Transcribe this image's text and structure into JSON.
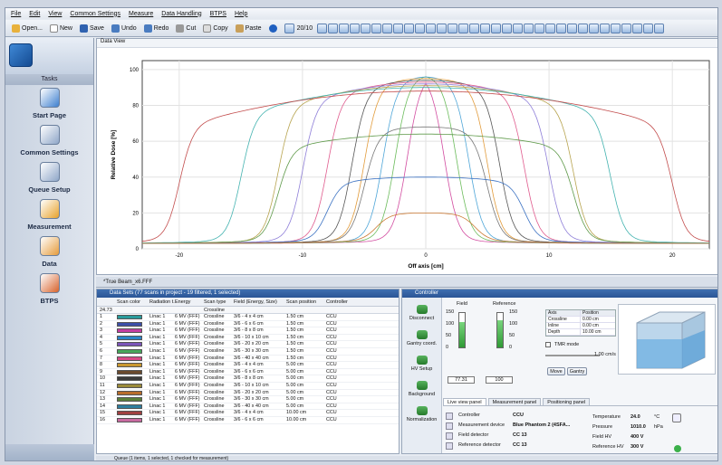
{
  "menu": [
    "File",
    "Edit",
    "View",
    "Common Settings",
    "Measure",
    "Data Handling",
    "BTPS",
    "Help"
  ],
  "toolbar": {
    "open": "Open...",
    "new": "New",
    "save": "Save",
    "undo": "Undo",
    "redo": "Redo",
    "cut": "Cut",
    "copy": "Copy",
    "paste": "Paste",
    "zoom": "20/10"
  },
  "sidebar": {
    "header": "Tasks",
    "items": [
      {
        "label": "Start Page",
        "icon": "start-page-icon",
        "color": "#3d7fcf"
      },
      {
        "label": "Common Settings",
        "icon": "common-settings-icon",
        "color": "#8ea6c8"
      },
      {
        "label": "Queue Setup",
        "icon": "queue-setup-icon",
        "color": "#8ea6c8"
      },
      {
        "label": "Measurement",
        "icon": "measurement-icon",
        "color": "#e8a22a"
      },
      {
        "label": "Data",
        "icon": "data-icon",
        "color": "#e59b3a"
      },
      {
        "label": "BTPS",
        "icon": "btps-icon",
        "color": "#d8622a"
      }
    ]
  },
  "chart_panel": {
    "title": "Data View"
  },
  "chart_data": {
    "type": "line",
    "xlabel": "Off axis [cm]",
    "ylabel": "Relative Dose [%]",
    "xlim": [
      -23,
      23
    ],
    "ylim": [
      0,
      105
    ],
    "xticks": [
      -20,
      -10,
      0,
      10,
      20
    ],
    "yticks": [
      0,
      20,
      40,
      60,
      80,
      100
    ],
    "grid": true,
    "profiles": [
      {
        "half_width": 1.5,
        "top": 98,
        "color": "#d24ca0"
      },
      {
        "half_width": 2.5,
        "top": 97,
        "color": "#6cbc5c"
      },
      {
        "half_width": 3.5,
        "top": 96,
        "color": "#4fa6d8"
      },
      {
        "half_width": 5,
        "top": 95,
        "color": "#e29c3c"
      },
      {
        "half_width": 6,
        "top": 94,
        "color": "#555555"
      },
      {
        "half_width": 8,
        "top": 93,
        "color": "#e05d8f"
      },
      {
        "half_width": 10,
        "top": 92,
        "color": "#8e7ed8"
      },
      {
        "half_width": 12,
        "top": 91,
        "color": "#b7a34e"
      },
      {
        "half_width": 15,
        "top": 90,
        "color": "#44b3b0"
      },
      {
        "half_width": 20,
        "top": 88,
        "color": "#c24b4b"
      },
      {
        "half_width": 5,
        "top": 68,
        "color": "#777777"
      },
      {
        "half_width": 12,
        "top": 64,
        "color": "#5f9a4a"
      },
      {
        "half_width": 8,
        "top": 40,
        "color": "#3a71c2"
      },
      {
        "half_width": 4,
        "top": 20,
        "color": "#cc7a33"
      }
    ]
  },
  "tab_label": "*True Beam_x6.FFF",
  "data_panel": {
    "title": "Data Sets (77 scans in project - 19 filtered, 1 selected)",
    "columns": [
      "",
      "Scan color",
      "Radiation t.",
      "Energy",
      "Scan type",
      "Field (Energy, Size)",
      "Scan position",
      "Controller"
    ],
    "filter_row": [
      "24.73",
      "",
      "",
      "",
      "Crossline",
      "",
      "",
      ""
    ],
    "rows": [
      {
        "n": "1",
        "color": "#2a9b9b",
        "rad": "Linac 1",
        "en": "6 MV (FFF)",
        "type": "Crossline",
        "field": "3/6 - 4 x 4 cm",
        "pos": "1.50 cm",
        "ctrl": "CCU"
      },
      {
        "n": "2",
        "color": "#3c4ea8",
        "rad": "Linac 1",
        "en": "6 MV (FFF)",
        "type": "Crossline",
        "field": "3/6 - 6 x 6 cm",
        "pos": "1.50 cm",
        "ctrl": "CCU"
      },
      {
        "n": "3",
        "color": "#c23da0",
        "rad": "Linac 1",
        "en": "6 MV (FFF)",
        "type": "Crossline",
        "field": "3/6 - 8 x 8 cm",
        "pos": "1.50 cm",
        "ctrl": "CCU"
      },
      {
        "n": "4",
        "color": "#2b84c8",
        "rad": "Linac 1",
        "en": "6 MV (FFF)",
        "type": "Crossline",
        "field": "3/6 - 10 x 10 cm",
        "pos": "1.50 cm",
        "ctrl": "CCU"
      },
      {
        "n": "5",
        "color": "#7b55b8",
        "rad": "Linac 1",
        "en": "6 MV (FFF)",
        "type": "Crossline",
        "field": "3/6 - 20 x 20 cm",
        "pos": "1.50 cm",
        "ctrl": "CCU"
      },
      {
        "n": "6",
        "color": "#46a85a",
        "rad": "Linac 1",
        "en": "6 MV (FFF)",
        "type": "Crossline",
        "field": "3/6 - 30 x 30 cm",
        "pos": "1.50 cm",
        "ctrl": "CCU"
      },
      {
        "n": "7",
        "color": "#d64a85",
        "rad": "Linac 1",
        "en": "6 MV (FFF)",
        "type": "Crossline",
        "field": "3/6 - 40 x 40 cm",
        "pos": "1.50 cm",
        "ctrl": "CCU"
      },
      {
        "n": "8",
        "color": "#c8972f",
        "rad": "Linac 1",
        "en": "6 MV (FFF)",
        "type": "Crossline",
        "field": "3/6 - 4 x 4 cm",
        "pos": "5.00 cm",
        "ctrl": "CCU"
      },
      {
        "n": "9",
        "color": "#6a4a2e",
        "rad": "Linac 1",
        "en": "6 MV (FFF)",
        "type": "Crossline",
        "field": "3/6 - 6 x 6 cm",
        "pos": "5.00 cm",
        "ctrl": "CCU"
      },
      {
        "n": "10",
        "color": "#3b3b3b",
        "rad": "Linac 1",
        "en": "6 MV (FFF)",
        "type": "Crossline",
        "field": "3/6 - 8 x 8 cm",
        "pos": "5.00 cm",
        "ctrl": "CCU"
      },
      {
        "n": "11",
        "color": "#9a8a3a",
        "rad": "Linac 1",
        "en": "6 MV (FFF)",
        "type": "Crossline",
        "field": "3/6 - 10 x 10 cm",
        "pos": "5.00 cm",
        "ctrl": "CCU"
      },
      {
        "n": "12",
        "color": "#b86d2c",
        "rad": "Linac 1",
        "en": "6 MV (FFF)",
        "type": "Crossline",
        "field": "3/6 - 20 x 20 cm",
        "pos": "5.00 cm",
        "ctrl": "CCU"
      },
      {
        "n": "13",
        "color": "#5a7f3a",
        "rad": "Linac 1",
        "en": "6 MV (FFF)",
        "type": "Crossline",
        "field": "3/6 - 30 x 30 cm",
        "pos": "5.00 cm",
        "ctrl": "CCU"
      },
      {
        "n": "14",
        "color": "#2f7e9e",
        "rad": "Linac 1",
        "en": "6 MV (FFF)",
        "type": "Crossline",
        "field": "3/6 - 40 x 40 cm",
        "pos": "5.00 cm",
        "ctrl": "CCU"
      },
      {
        "n": "15",
        "color": "#a04040",
        "rad": "Linac 1",
        "en": "6 MV (FFF)",
        "type": "Crossline",
        "field": "3/6 - 4 x 4 cm",
        "pos": "10.00 cm",
        "ctrl": "CCU"
      },
      {
        "n": "16",
        "color": "#c86aa0",
        "rad": "Linac 1",
        "en": "6 MV (FFF)",
        "type": "Crossline",
        "field": "3/6 - 6 x 6 cm",
        "pos": "10.00 cm",
        "ctrl": "CCU"
      }
    ]
  },
  "controller": {
    "title": "Controller",
    "left_items": [
      "Disconnect",
      "Gantry coord.",
      "HV Setup",
      "Background",
      "Normalization"
    ],
    "field_label": "Field",
    "reference_label": "Reference",
    "field_value": "77.31",
    "reference_value": "100",
    "field_level": 0.73,
    "reference_level": 0.8,
    "scale": [
      "150",
      "100",
      "50",
      "0"
    ],
    "position_headers": [
      "Axis",
      "Position"
    ],
    "positions": [
      [
        "Crossline",
        "0.00 cm"
      ],
      [
        "Inline",
        "0.00 cm"
      ],
      [
        "Depth",
        "10.00 cm"
      ]
    ],
    "tmr_label": "TMR mode",
    "cm_label": "1.00 cm/s",
    "move_btn": "Move",
    "gantry_btn": "Gantry",
    "tabs": [
      "Live view panel",
      "Measurement panel",
      "Positioning panel"
    ],
    "details": [
      {
        "label": "Controller",
        "value": "CCU"
      },
      {
        "label": "Measurement device",
        "value": "Blue Phantom 2 (4SFA..."
      },
      {
        "label": "Field detector",
        "value": "CC 13"
      },
      {
        "label": "Reference detector",
        "value": "CC 13"
      }
    ],
    "env": [
      {
        "label": "Temperature",
        "value": "24.0",
        "unit": "°C"
      },
      {
        "label": "Pressure",
        "value": "1010.0",
        "unit": "hPa"
      },
      {
        "label": "Field HV",
        "value": "400 V",
        "unit": ""
      },
      {
        "label": "Reference HV",
        "value": "300 V",
        "unit": ""
      }
    ]
  },
  "status": "Queue (1 items, 1 selected, 1 checked for measurement)"
}
